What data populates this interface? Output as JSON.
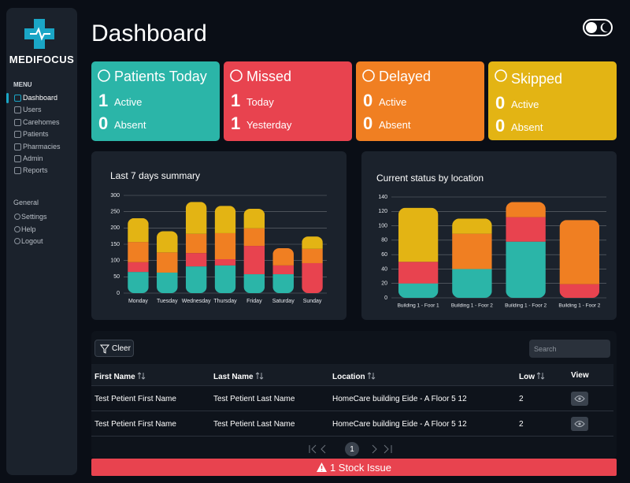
{
  "sidebar": {
    "logo": "MEDIFOCUS",
    "menu_heading": "MENU",
    "menu": [
      "Dashboard",
      "Users",
      "Carehomes",
      "Patients",
      "Pharmacies",
      "Admin",
      "Reports"
    ],
    "general_heading": "General",
    "general": [
      "Settings",
      "Help",
      "Logout"
    ]
  },
  "header": {
    "title": "Dashboard"
  },
  "cards": [
    {
      "title": "Patients Today",
      "color": "#2bb5a8",
      "rows": [
        {
          "count": 1,
          "label": "Active"
        },
        {
          "count": 0,
          "label": "Absent"
        }
      ]
    },
    {
      "title": "Missed",
      "color": "#e8434f",
      "rows": [
        {
          "count": 1,
          "label": "Today"
        },
        {
          "count": 1,
          "label": "Yesterday"
        }
      ]
    },
    {
      "title": "Delayed",
      "color": "#f07f22",
      "rows": [
        {
          "count": 0,
          "label": "Active"
        },
        {
          "count": 0,
          "label": "Absent"
        }
      ]
    },
    {
      "title": "Skipped",
      "color": "#e3b414",
      "rows": [
        {
          "count": 0,
          "label": "Active"
        },
        {
          "count": 0,
          "label": "Absent"
        }
      ]
    }
  ],
  "chart_data": [
    {
      "type": "bar",
      "stacked": true,
      "title": "Last 7 days summary",
      "categories": [
        "Monday",
        "Tuesday",
        "Wednesday",
        "Thursday",
        "Friday",
        "Saturday",
        "Sunday"
      ],
      "series": [
        {
          "color": "#2bb5a8",
          "values": [
            65,
            63,
            82,
            85,
            58,
            58,
            0
          ]
        },
        {
          "color": "#e8434f",
          "values": [
            30,
            0,
            41,
            19,
            87,
            27,
            92
          ]
        },
        {
          "color": "#f07f22",
          "values": [
            62,
            62,
            59,
            80,
            54,
            53,
            44
          ]
        },
        {
          "color": "#e3b414",
          "values": [
            73,
            65,
            98,
            84,
            60,
            0,
            38
          ]
        }
      ],
      "ylim": [
        0,
        300
      ],
      "yticks": [
        0,
        50,
        100,
        150,
        200,
        250,
        300
      ],
      "grid": true
    },
    {
      "type": "bar",
      "stacked": true,
      "title": "Current status by location",
      "categories": [
        "Building 1 - Foor 1",
        "Building 1 - Foor 2",
        "Building 1 - Foor 2",
        "Building 1 - Foor 2"
      ],
      "series": [
        {
          "color": "#2bb5a8",
          "values": [
            20,
            40,
            78,
            0
          ]
        },
        {
          "color": "#e8434f",
          "values": [
            30,
            0,
            34,
            19
          ]
        },
        {
          "color": "#f07f22",
          "values": [
            0,
            49,
            21,
            89
          ]
        },
        {
          "color": "#e3b414",
          "values": [
            75,
            21,
            0,
            0
          ]
        }
      ],
      "ylim": [
        0,
        140
      ],
      "yticks": [
        0,
        20,
        40,
        60,
        80,
        100,
        120,
        140
      ],
      "grid": true
    }
  ],
  "table": {
    "filter_button": "Cleer",
    "search_placeholder": "Search",
    "columns": [
      "First Name",
      "Last Name",
      "Location",
      "Low",
      "View"
    ],
    "rows": [
      [
        "Test Petient First Name",
        "Test Petient Last Name",
        "HomeCare building Eide - A Floor 5 12",
        2
      ],
      [
        "Test Petient First Name",
        "Test Petient Last Name",
        "HomeCare building Eide - A Floor 5 12",
        2
      ]
    ]
  },
  "pagination": {
    "current": 1
  },
  "alert": "1 Stock Issue"
}
